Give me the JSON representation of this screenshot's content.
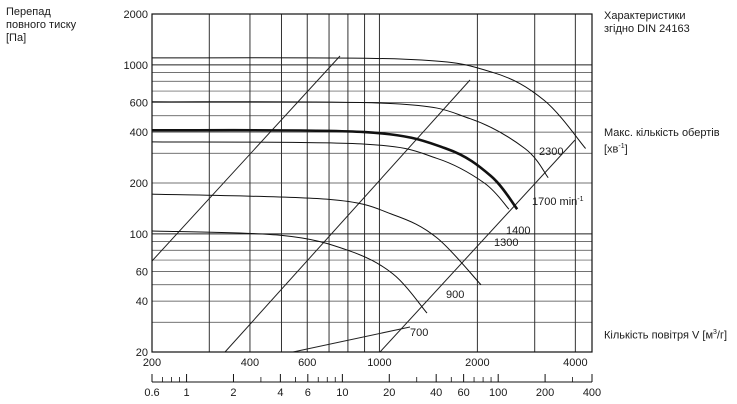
{
  "texts": {
    "ylabel_lines": [
      "Перепад",
      "повного тиску",
      "[Па]"
    ],
    "standard_lines": [
      "Характеристики",
      "згідно DIN 24163"
    ],
    "speed_label": "Макс. кількість обертів",
    "speed_unit": "[хв",
    "speed_unit_sup": "-1",
    "speed_unit_close": "]",
    "xlabel": "Кількість повітря V [м",
    "xlabel_sup": "3",
    "xlabel_close": "/г]"
  },
  "chart_data": {
    "type": "line",
    "title": "",
    "xscale": "log",
    "yscale": "log",
    "xlabel": "Кількість повітря V [м³/г]",
    "ylabel": "Перепад повного тиску [Па]",
    "xlim": [
      200,
      4500
    ],
    "ylim": [
      20,
      2000
    ],
    "grid": true,
    "x_ticks": [
      {
        "value": 200,
        "label": "200"
      },
      {
        "value": 400,
        "label": "400"
      },
      {
        "value": 600,
        "label": "600"
      },
      {
        "value": 1000,
        "label": "1000"
      },
      {
        "value": 2000,
        "label": "2000"
      },
      {
        "value": 4000,
        "label": "4000"
      }
    ],
    "y_ticks": [
      {
        "value": 20,
        "label": "20"
      },
      {
        "value": 40,
        "label": "40"
      },
      {
        "value": 60,
        "label": "60"
      },
      {
        "value": 100,
        "label": "100"
      },
      {
        "value": 200,
        "label": "200"
      },
      {
        "value": 400,
        "label": "400"
      },
      {
        "value": 600,
        "label": "600"
      },
      {
        "value": 1000,
        "label": "1000"
      },
      {
        "value": 2000,
        "label": "2000"
      }
    ],
    "secondary_x_ticks": [
      {
        "value": 0.6,
        "label": "0.6"
      },
      {
        "value": 1,
        "label": "1"
      },
      {
        "value": 2,
        "label": "2"
      },
      {
        "value": 4,
        "label": "4"
      },
      {
        "value": 6,
        "label": "6"
      },
      {
        "value": 10,
        "label": "10"
      },
      {
        "value": 20,
        "label": "20"
      },
      {
        "value": 40,
        "label": "40"
      },
      {
        "value": 60,
        "label": "60"
      },
      {
        "value": 100,
        "label": "100"
      },
      {
        "value": 200,
        "label": "200"
      },
      {
        "value": 400,
        "label": "400"
      }
    ],
    "secondary_x_minor": [
      0.7,
      0.8,
      0.9,
      3,
      5,
      7,
      8,
      9,
      30,
      50,
      70,
      80,
      90,
      300
    ],
    "series": [
      {
        "label": "700",
        "bold": false,
        "points": [
          [
            200,
            104
          ],
          [
            500,
            98
          ],
          [
            800,
            80
          ],
          [
            1100,
            58
          ],
          [
            1400,
            34
          ]
        ]
      },
      {
        "label": "900",
        "bold": false,
        "points": [
          [
            200,
            172
          ],
          [
            700,
            160
          ],
          [
            1100,
            130
          ],
          [
            1500,
            95
          ],
          [
            2050,
            50
          ]
        ]
      },
      {
        "label": "1300",
        "bold": false,
        "points": [
          [
            200,
            350
          ],
          [
            900,
            340
          ],
          [
            1500,
            280
          ],
          [
            2100,
            200
          ],
          [
            2500,
            140
          ]
        ]
      },
      {
        "label": "1400",
        "bold": true,
        "points": [
          [
            200,
            410
          ],
          [
            900,
            400
          ],
          [
            1600,
            320
          ],
          [
            2200,
            220
          ],
          [
            2650,
            140
          ]
        ]
      },
      {
        "label": "1700 min",
        "label_sup": "-1",
        "bold": false,
        "points": [
          [
            200,
            605
          ],
          [
            1100,
            590
          ],
          [
            1900,
            480
          ],
          [
            2800,
            320
          ],
          [
            3300,
            215
          ]
        ]
      },
      {
        "label": "2300",
        "bold": false,
        "points": [
          [
            200,
            1100
          ],
          [
            1200,
            1080
          ],
          [
            2200,
            910
          ],
          [
            3200,
            620
          ],
          [
            4300,
            320
          ]
        ]
      }
    ]
  }
}
